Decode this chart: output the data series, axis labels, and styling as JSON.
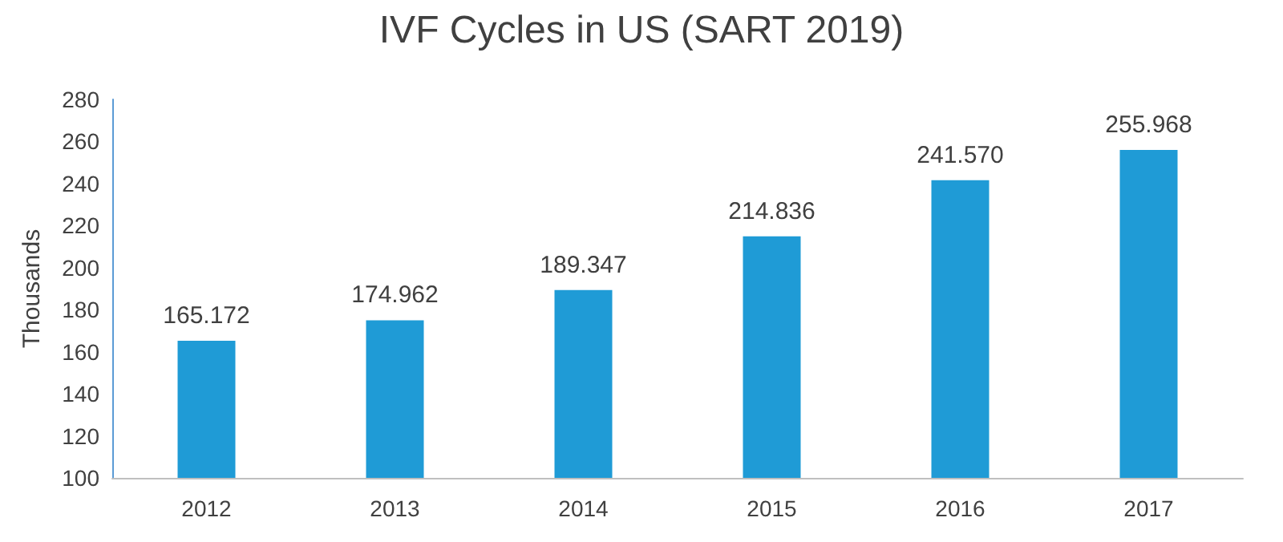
{
  "chart_data": {
    "type": "bar",
    "title": "IVF Cycles in US (SART 2019)",
    "ylabel": "Thousands",
    "categories": [
      "2012",
      "2013",
      "2014",
      "2015",
      "2016",
      "2017"
    ],
    "values": [
      165.172,
      174.962,
      189.347,
      214.836,
      241.57,
      255.968
    ],
    "value_labels": [
      "165.172",
      "174.962",
      "189.347",
      "214.836",
      "241.570",
      "255.968"
    ],
    "color": "#1f9bd6",
    "ylim": [
      100,
      280
    ],
    "yticks": [
      100,
      120,
      140,
      160,
      180,
      200,
      220,
      240,
      260,
      280
    ]
  }
}
